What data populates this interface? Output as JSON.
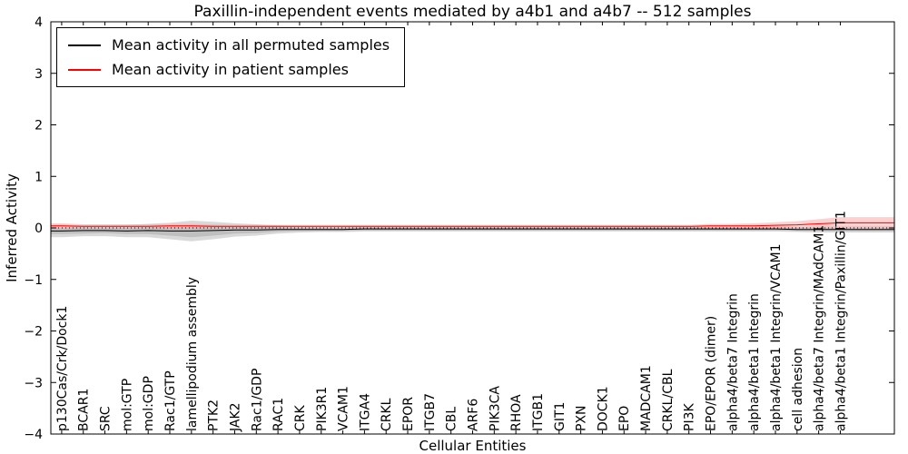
{
  "chart_data": {
    "type": "line",
    "title": "Paxillin-independent events mediated by a4b1 and a4b7 -- 512 samples",
    "xlabel": "Cellular Entities",
    "ylabel": "Inferred Activity",
    "ylim": [
      -4,
      4
    ],
    "yticks": [
      -4,
      -3,
      -2,
      -1,
      0,
      1,
      2,
      3,
      4
    ],
    "zero_line_dotted": true,
    "grid": false,
    "legend_position": "upper left",
    "categories": [
      "p130Cas/Crk/Dock1",
      "BCAR1",
      "SRC",
      "mol:GTP",
      "mol:GDP",
      "Rac1/GTP",
      "lamellipodium assembly",
      "PTK2",
      "JAK2",
      "Rac1/GDP",
      "RAC1",
      "CRK",
      "PIK3R1",
      "VCAM1",
      "ITGA4",
      "CRKL",
      "EPOR",
      "ITGB7",
      "CBL",
      "ARF6",
      "PIK3CA",
      "RHOA",
      "ITGB1",
      "GIT1",
      "PXN",
      "DOCK1",
      "EPO",
      "MADCAM1",
      "CRKL/CBL",
      "PI3K",
      "EPO/EPOR (dimer)",
      "alpha4/beta7 Integrin",
      "alpha4/beta1 Integrin",
      "alpha4/beta1 Integrin/VCAM1",
      "cell adhesion",
      "alpha4/beta7 Integrin/MAdCAM1",
      "alpha4/beta1 Integrin/Paxillin/GIT1"
    ],
    "series": [
      {
        "name": "Mean activity in all permuted samples",
        "color": "#000000",
        "band_color": "#aaaaaa",
        "values": [
          -0.06,
          -0.05,
          -0.05,
          -0.06,
          -0.05,
          -0.06,
          -0.06,
          -0.05,
          -0.04,
          -0.04,
          -0.03,
          -0.03,
          -0.03,
          -0.03,
          -0.02,
          -0.02,
          -0.02,
          -0.02,
          -0.02,
          -0.02,
          -0.02,
          -0.02,
          -0.02,
          -0.02,
          -0.02,
          -0.02,
          -0.02,
          -0.02,
          -0.02,
          -0.02,
          -0.02,
          -0.02,
          -0.02,
          -0.02,
          -0.03,
          -0.03,
          -0.03
        ],
        "band_outer": [
          0.12,
          0.11,
          0.11,
          0.12,
          0.13,
          0.16,
          0.2,
          0.17,
          0.13,
          0.11,
          0.08,
          0.06,
          0.05,
          0.05,
          0.05,
          0.05,
          0.05,
          0.05,
          0.05,
          0.05,
          0.05,
          0.05,
          0.05,
          0.05,
          0.05,
          0.05,
          0.05,
          0.05,
          0.05,
          0.05,
          0.05,
          0.05,
          0.05,
          0.05,
          0.05,
          0.06,
          0.06
        ],
        "band_inner": [
          0.06,
          0.06,
          0.05,
          0.06,
          0.07,
          0.09,
          0.12,
          0.1,
          0.07,
          0.06,
          0.04,
          0.03,
          0.03,
          0.03,
          0.03,
          0.03,
          0.03,
          0.03,
          0.03,
          0.03,
          0.03,
          0.03,
          0.03,
          0.03,
          0.03,
          0.03,
          0.03,
          0.03,
          0.03,
          0.03,
          0.03,
          0.03,
          0.03,
          0.03,
          0.03,
          0.03,
          0.03
        ]
      },
      {
        "name": "Mean activity in patient samples",
        "color": "#ff0000",
        "band_color": "#ffaaaa",
        "values": [
          0.04,
          0.03,
          0.03,
          0.03,
          0.03,
          0.04,
          0.04,
          0.03,
          0.03,
          0.03,
          0.03,
          0.03,
          0.03,
          0.03,
          0.03,
          0.03,
          0.03,
          0.03,
          0.03,
          0.03,
          0.03,
          0.03,
          0.03,
          0.03,
          0.03,
          0.03,
          0.03,
          0.03,
          0.03,
          0.03,
          0.04,
          0.04,
          0.04,
          0.05,
          0.06,
          0.08,
          0.1
        ],
        "band_outer": [
          0.05,
          0.04,
          0.04,
          0.04,
          0.04,
          0.04,
          0.04,
          0.04,
          0.03,
          0.03,
          0.03,
          0.03,
          0.03,
          0.03,
          0.03,
          0.03,
          0.03,
          0.03,
          0.03,
          0.03,
          0.03,
          0.03,
          0.03,
          0.03,
          0.03,
          0.03,
          0.03,
          0.03,
          0.03,
          0.03,
          0.04,
          0.04,
          0.05,
          0.06,
          0.07,
          0.09,
          0.11
        ]
      }
    ]
  }
}
